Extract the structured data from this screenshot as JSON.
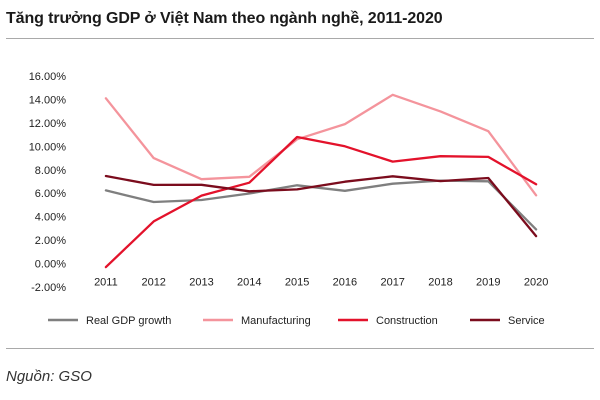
{
  "title": "Tăng trưởng GDP ở Việt Nam theo ngành nghề, 2011-2020",
  "source": "Nguồn: GSO",
  "chart_data": {
    "type": "line",
    "x": [
      "2011",
      "2012",
      "2013",
      "2014",
      "2015",
      "2016",
      "2017",
      "2018",
      "2019",
      "2020"
    ],
    "ylim": [
      -2,
      16
    ],
    "yticks": [
      -2,
      0,
      2,
      4,
      6,
      8,
      10,
      12,
      14,
      16
    ],
    "ytick_labels": [
      "-2.00%",
      "0.00%",
      "2.00%",
      "4.00%",
      "6.00%",
      "8.00%",
      "10.00%",
      "12.00%",
      "14.00%",
      "16.00%"
    ],
    "grid": false,
    "legend": "bottom",
    "series": [
      {
        "name": "Real GDP growth",
        "color": "#7f7f7f",
        "values": [
          6.24,
          5.25,
          5.42,
          5.98,
          6.68,
          6.21,
          6.81,
          7.08,
          7.02,
          2.91
        ]
      },
      {
        "name": "Manufacturing",
        "color": "#f4949c",
        "values": [
          14.1,
          9.0,
          7.2,
          7.4,
          10.6,
          11.9,
          14.4,
          12.98,
          11.29,
          5.82
        ]
      },
      {
        "name": "Construction",
        "color": "#e3122b",
        "values": [
          -0.3,
          3.6,
          5.8,
          6.9,
          10.8,
          10.0,
          8.7,
          9.16,
          9.1,
          6.76
        ]
      },
      {
        "name": "Service",
        "color": "#7b0c1d",
        "values": [
          7.47,
          6.71,
          6.72,
          6.16,
          6.33,
          6.98,
          7.44,
          7.03,
          7.3,
          2.34
        ]
      }
    ]
  }
}
